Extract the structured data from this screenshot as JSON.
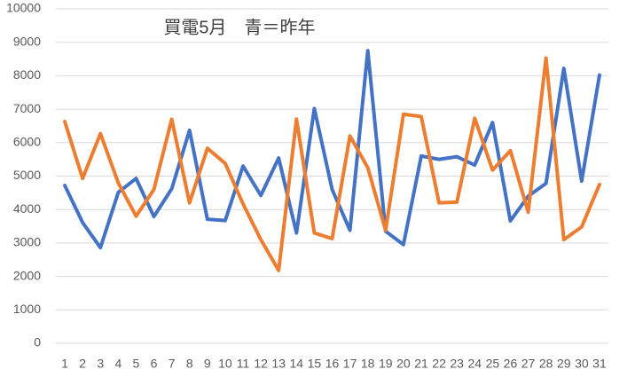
{
  "chart_data": {
    "type": "line",
    "title": "買電5月　青＝昨年",
    "categories": [
      "1",
      "2",
      "3",
      "4",
      "5",
      "6",
      "7",
      "8",
      "9",
      "10",
      "11",
      "12",
      "13",
      "14",
      "15",
      "16",
      "17",
      "18",
      "19",
      "20",
      "21",
      "22",
      "23",
      "24",
      "25",
      "26",
      "27",
      "28",
      "29",
      "30",
      "31"
    ],
    "series": [
      {
        "color": "#4472c4",
        "values": [
          4720,
          3610,
          2860,
          4510,
          4930,
          3790,
          4620,
          6370,
          3710,
          3670,
          5300,
          4420,
          5540,
          3300,
          7020,
          4600,
          3380,
          8750,
          3350,
          2950,
          5600,
          5500,
          5580,
          5330,
          6600,
          3660,
          4400,
          4780,
          8220,
          4850,
          8020
        ]
      },
      {
        "color": "#ed7d31",
        "values": [
          6630,
          4930,
          6270,
          4800,
          3800,
          4600,
          6700,
          4200,
          5830,
          5380,
          4170,
          3100,
          2180,
          6700,
          3300,
          3130,
          6200,
          5250,
          3380,
          6850,
          6780,
          4200,
          4220,
          6730,
          5180,
          5760,
          3920,
          8530,
          3100,
          3480,
          4750
        ]
      }
    ],
    "ylim": [
      0,
      10000
    ],
    "yticks": [
      0,
      1000,
      2000,
      3000,
      4000,
      5000,
      6000,
      7000,
      8000,
      9000,
      10000
    ],
    "grid": true
  }
}
